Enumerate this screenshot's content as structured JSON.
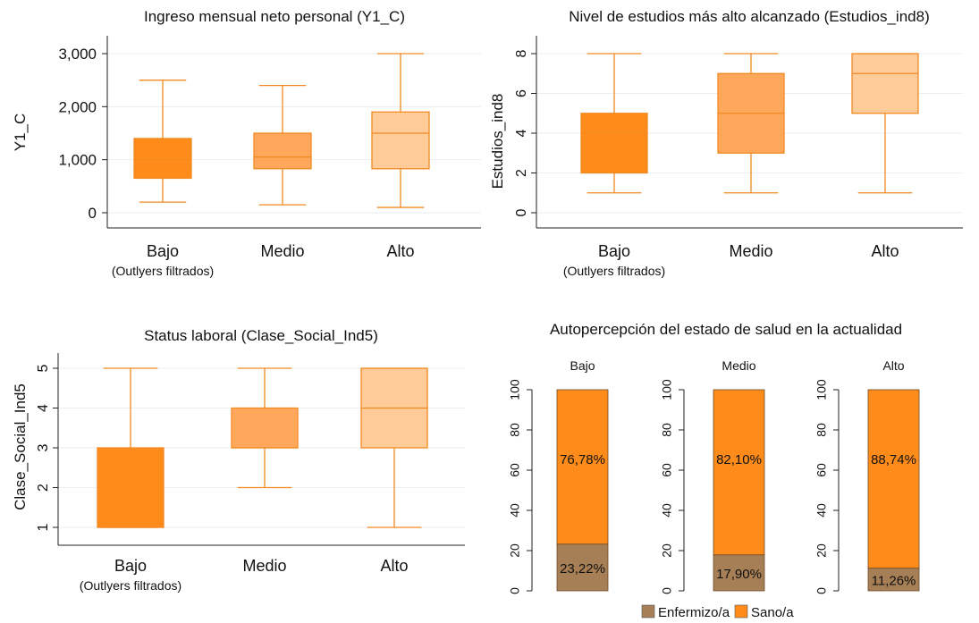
{
  "chart_data": [
    {
      "type": "box",
      "title": "Ingreso mensual neto personal (Y1_C)",
      "ylabel": "Y1_C",
      "xlabel": "",
      "ylim": [
        0,
        3000
      ],
      "yticks": [
        0,
        1000,
        2000,
        3000
      ],
      "ytick_labels": [
        "0",
        "1,000",
        "2,000",
        "3,000"
      ],
      "categories": [
        "Bajo",
        "Medio",
        "Alto"
      ],
      "sublabel": "(Outlyers filtrados)",
      "boxes": [
        {
          "category": "Bajo",
          "whisker_low": 200,
          "q1": 650,
          "median": 1000,
          "q3": 1400,
          "whisker_high": 2500
        },
        {
          "category": "Medio",
          "whisker_low": 150,
          "q1": 830,
          "median": 1050,
          "q3": 1500,
          "whisker_high": 2400
        },
        {
          "category": "Alto",
          "whisker_low": 100,
          "q1": 830,
          "median": 1500,
          "q3": 1900,
          "whisker_high": 3000
        }
      ]
    },
    {
      "type": "box",
      "title": "Nivel de estudios más alto alcanzado (Estudios_ind8)",
      "ylabel": "Estudios_ind8",
      "xlabel": "",
      "ylim": [
        0,
        8
      ],
      "yticks": [
        0,
        2,
        4,
        6,
        8
      ],
      "ytick_labels": [
        "0",
        "2",
        "4",
        "6",
        "8"
      ],
      "categories": [
        "Bajo",
        "Medio",
        "Alto"
      ],
      "sublabel": "(Outlyers filtrados)",
      "boxes": [
        {
          "category": "Bajo",
          "whisker_low": 1,
          "q1": 2,
          "median": 4,
          "q3": 5,
          "whisker_high": 8
        },
        {
          "category": "Medio",
          "whisker_low": 1,
          "q1": 3,
          "median": 5,
          "q3": 7,
          "whisker_high": 8
        },
        {
          "category": "Alto",
          "whisker_low": 1,
          "q1": 5,
          "median": 7,
          "q3": 8,
          "whisker_high": 8
        }
      ]
    },
    {
      "type": "box",
      "title": "Status laboral (Clase_Social_Ind5)",
      "ylabel": "Clase_Social_Ind5",
      "xlabel": "",
      "ylim": [
        1,
        5
      ],
      "yticks": [
        1,
        2,
        3,
        4,
        5
      ],
      "ytick_labels": [
        "1",
        "2",
        "3",
        "4",
        "5"
      ],
      "categories": [
        "Bajo",
        "Medio",
        "Alto"
      ],
      "sublabel": "(Outlyers filtrados)",
      "boxes": [
        {
          "category": "Bajo",
          "whisker_low": 1,
          "q1": 1,
          "median": 1,
          "q3": 3,
          "whisker_high": 5
        },
        {
          "category": "Medio",
          "whisker_low": 2,
          "q1": 3,
          "median": 3,
          "q3": 4,
          "whisker_high": 5
        },
        {
          "category": "Alto",
          "whisker_low": 1,
          "q1": 3,
          "median": 4,
          "q3": 5,
          "whisker_high": 5
        }
      ]
    },
    {
      "type": "bar",
      "stacked": true,
      "title": "Autopercepción del estado de salud en la actualidad",
      "ylim": [
        0,
        100
      ],
      "yticks": [
        0,
        20,
        40,
        60,
        80,
        100
      ],
      "panels": [
        {
          "name": "Bajo",
          "values": {
            "Enfermizo/a": 23.22,
            "Sano/a": 76.78
          },
          "labels": {
            "Enfermizo/a": "23,22%",
            "Sano/a": "76,78%"
          }
        },
        {
          "name": "Medio",
          "values": {
            "Enfermizo/a": 17.9,
            "Sano/a": 82.1
          },
          "labels": {
            "Enfermizo/a": "17,90%",
            "Sano/a": "82,10%"
          }
        },
        {
          "name": "Alto",
          "values": {
            "Enfermizo/a": 11.26,
            "Sano/a": 88.74
          },
          "labels": {
            "Enfermizo/a": "11,26%",
            "Sano/a": "88,74%"
          }
        }
      ],
      "series": [
        {
          "name": "Enfermizo/a",
          "color": "#a67f56"
        },
        {
          "name": "Sano/a",
          "color": "#ff8c1a"
        }
      ],
      "legend_position": "bottom"
    }
  ],
  "box_colors": [
    "#ff8c1a",
    "#ffa85c",
    "#ffcb98"
  ],
  "line_color": "#f08a22",
  "grid_color": "#e8eef3"
}
